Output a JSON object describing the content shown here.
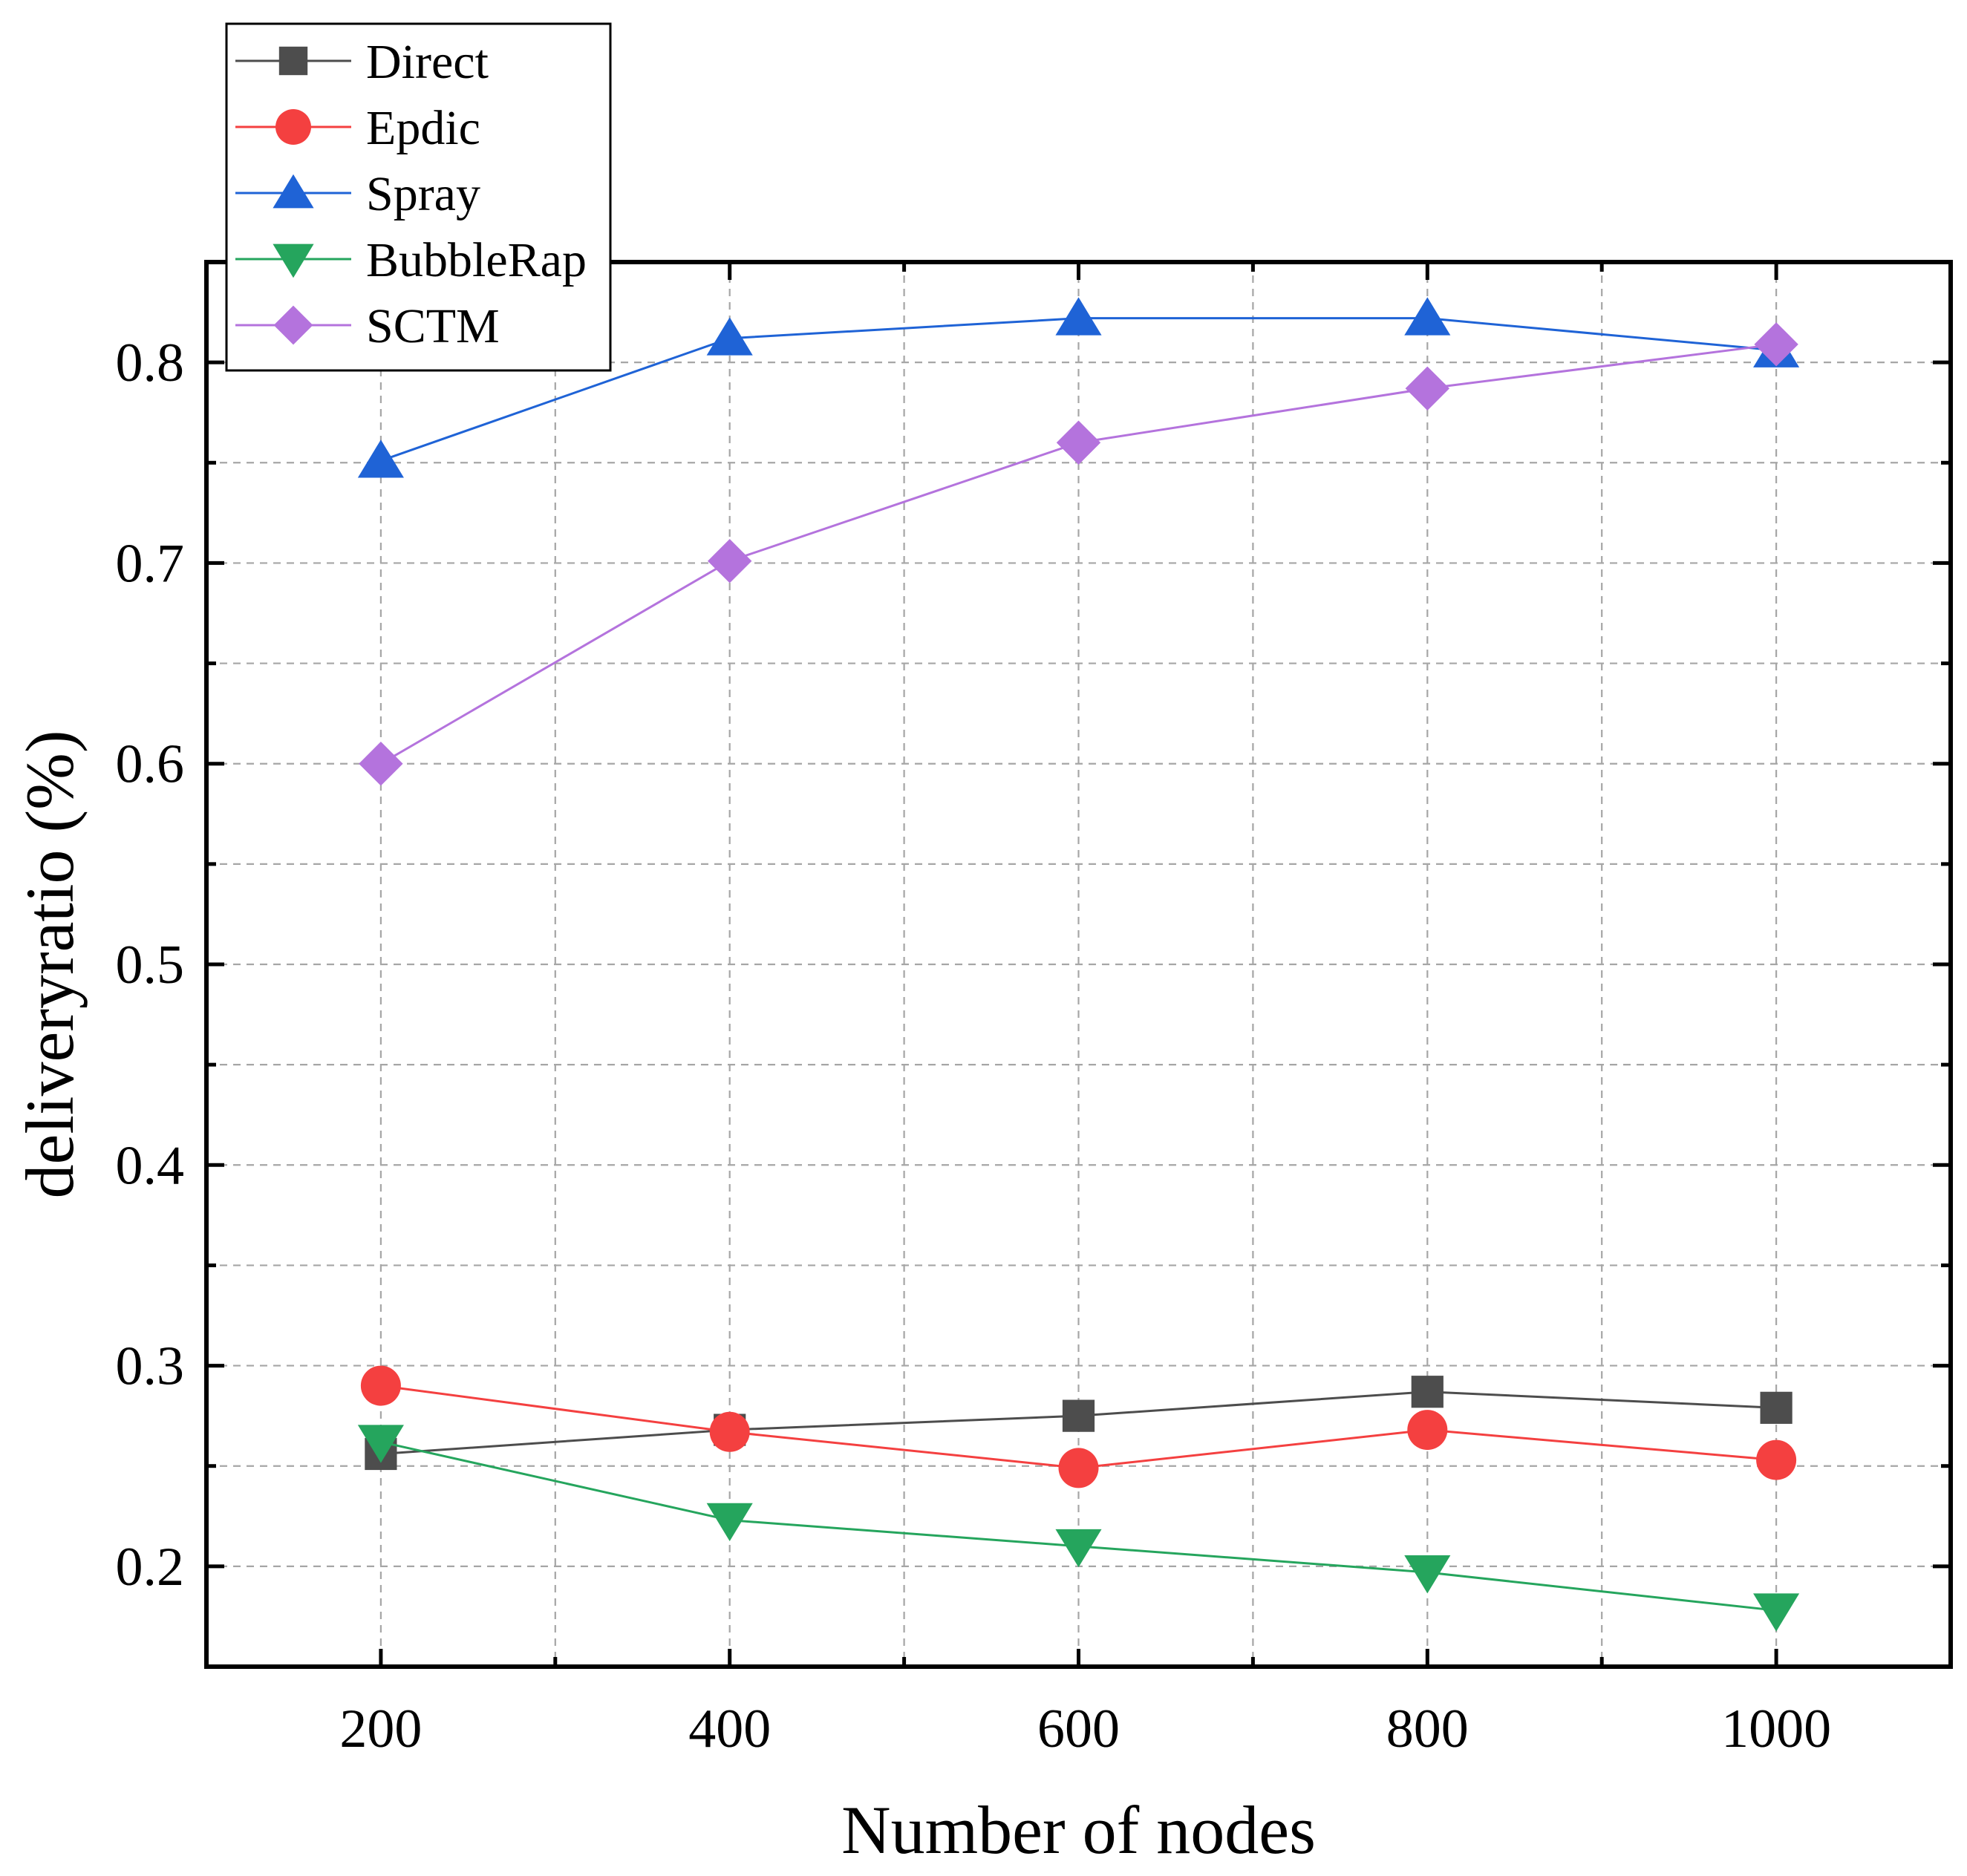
{
  "chart_data": {
    "type": "line",
    "title": "",
    "xlabel": "Number of nodes",
    "ylabel": "deliveryratio (%)",
    "x": [
      200,
      400,
      600,
      800,
      1000
    ],
    "xlim": [
      100,
      1100
    ],
    "ylim": [
      0.15,
      0.85
    ],
    "x_major_ticks": [
      200,
      400,
      600,
      800,
      1000
    ],
    "x_tick_labels": [
      "200",
      "400",
      "600",
      "800",
      "1000"
    ],
    "x_minor_ticks": [
      300,
      500,
      700,
      900
    ],
    "y_major_ticks": [
      0.2,
      0.3,
      0.4,
      0.5,
      0.6,
      0.7,
      0.8
    ],
    "y_tick_labels": [
      "0.2",
      "0.3",
      "0.4",
      "0.5",
      "0.6",
      "0.7",
      "0.8"
    ],
    "y_minor_ticks": [
      0.25,
      0.35,
      0.45,
      0.55,
      0.65,
      0.75
    ],
    "grid": true,
    "legend_position": "top-left",
    "series": [
      {
        "name": "Direct",
        "marker": "square",
        "color": "#4d4d4d",
        "values": [
          0.256,
          0.268,
          0.275,
          0.287,
          0.279
        ]
      },
      {
        "name": "Epdic",
        "marker": "circle",
        "color": "#f44040",
        "values": [
          0.29,
          0.267,
          0.249,
          0.268,
          0.253
        ]
      },
      {
        "name": "Spray",
        "marker": "triangle-up",
        "color": "#1f63d6",
        "values": [
          0.751,
          0.812,
          0.822,
          0.822,
          0.806
        ]
      },
      {
        "name": "BubbleRap",
        "marker": "triangle-down",
        "color": "#25a55d",
        "values": [
          0.262,
          0.223,
          0.21,
          0.197,
          0.178
        ]
      },
      {
        "name": "SCTM",
        "marker": "diamond",
        "color": "#b473dd",
        "values": [
          0.6,
          0.701,
          0.76,
          0.787,
          0.809
        ]
      }
    ]
  }
}
